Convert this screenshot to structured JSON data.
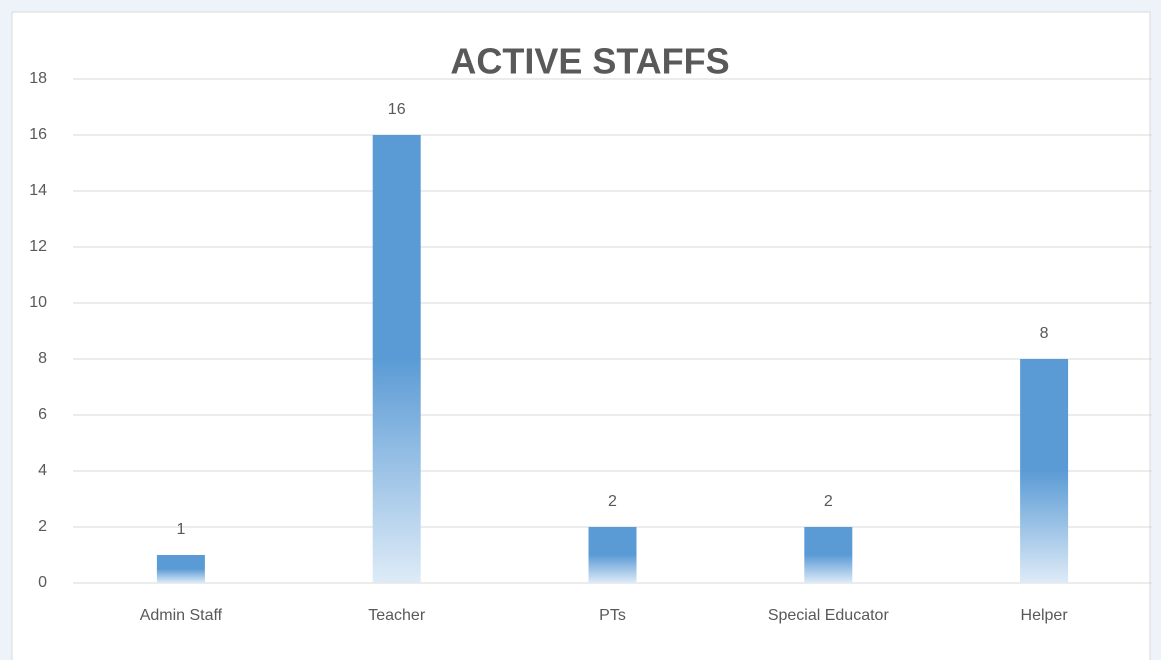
{
  "chart_data": {
    "type": "bar",
    "title": "ACTIVE  STAFFS",
    "categories": [
      "Admin Staff",
      "Teacher",
      "PTs",
      "Special Educator",
      "Helper"
    ],
    "values": [
      1,
      16,
      2,
      2,
      8
    ],
    "color": "#5b9bd5",
    "ylim": [
      0,
      18
    ],
    "yticks": [
      0,
      2,
      4,
      6,
      8,
      10,
      12,
      14,
      16,
      18
    ],
    "grid": true,
    "data_labels": true
  }
}
